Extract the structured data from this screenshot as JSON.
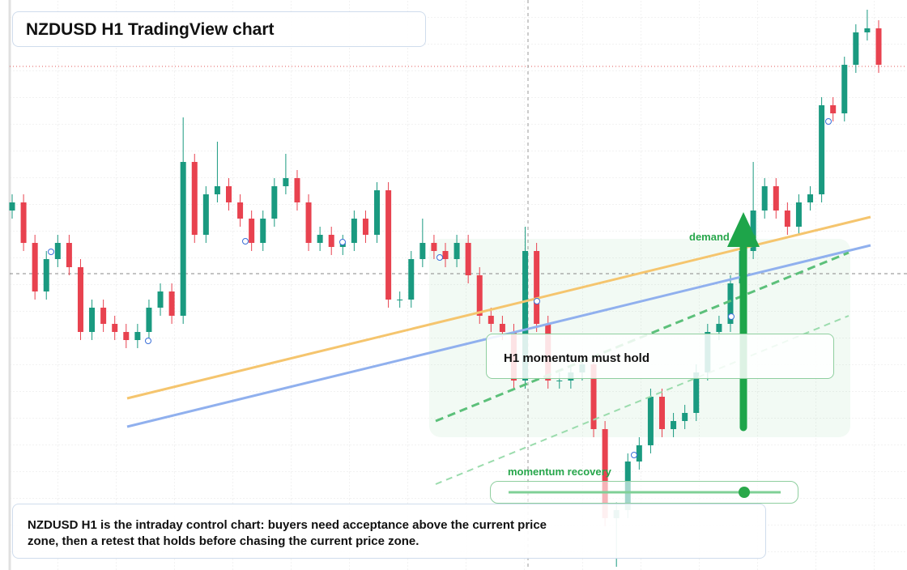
{
  "chart_data": {
    "type": "candlestick",
    "title": "NZDUSD H1 TradingView chart",
    "annotations": {
      "zone_label": "demand zone",
      "note": "H1 momentum must hold",
      "slider_label": "momentum recovery",
      "caption": "NZDUSD H1 is the intraday control chart: buyers need acceptance above the current price zone, then a retest that holds before chasing the current price zone."
    },
    "up_color": "#1a9a80",
    "down_color": "#e8424f",
    "ylim": [
      -4,
      700
    ],
    "open": [
      440,
      450,
      400,
      340,
      380,
      400,
      370,
      290,
      320,
      300,
      290,
      280,
      290,
      320,
      340,
      310,
      500,
      410,
      460,
      470,
      450,
      430,
      400,
      430,
      470,
      480,
      450,
      400,
      410,
      395,
      400,
      430,
      410,
      465,
      330,
      330,
      380,
      400,
      390,
      380,
      400,
      360,
      310,
      300,
      290,
      230,
      390,
      300,
      230,
      230,
      240,
      250,
      170,
      60,
      70,
      130,
      150,
      210,
      170,
      180,
      190,
      240,
      290,
      300,
      350,
      390,
      440,
      470,
      440,
      420,
      450,
      460,
      570,
      560,
      620,
      660,
      665
    ],
    "high": [
      460,
      460,
      410,
      390,
      410,
      410,
      380,
      330,
      330,
      310,
      300,
      300,
      330,
      350,
      350,
      555,
      510,
      470,
      525,
      480,
      460,
      440,
      440,
      480,
      510,
      490,
      460,
      420,
      420,
      410,
      440,
      440,
      475,
      475,
      340,
      390,
      430,
      410,
      400,
      410,
      410,
      370,
      320,
      310,
      300,
      420,
      400,
      310,
      240,
      250,
      260,
      260,
      180,
      80,
      140,
      160,
      220,
      220,
      190,
      200,
      250,
      300,
      310,
      360,
      400,
      500,
      480,
      480,
      450,
      460,
      470,
      580,
      580,
      630,
      670,
      688,
      675
    ],
    "low": [
      430,
      390,
      330,
      330,
      370,
      360,
      280,
      280,
      290,
      280,
      270,
      270,
      280,
      310,
      300,
      300,
      400,
      400,
      450,
      440,
      420,
      390,
      390,
      420,
      460,
      440,
      390,
      390,
      385,
      385,
      390,
      400,
      400,
      320,
      320,
      320,
      370,
      380,
      370,
      370,
      350,
      300,
      290,
      280,
      220,
      220,
      290,
      220,
      220,
      220,
      230,
      160,
      50,
      0,
      60,
      120,
      140,
      160,
      160,
      170,
      180,
      230,
      280,
      290,
      340,
      380,
      430,
      430,
      410,
      410,
      440,
      450,
      550,
      550,
      610,
      650,
      610
    ],
    "close": [
      450,
      400,
      340,
      380,
      400,
      370,
      290,
      320,
      300,
      290,
      280,
      290,
      320,
      340,
      310,
      500,
      410,
      460,
      470,
      450,
      430,
      400,
      430,
      470,
      480,
      450,
      400,
      410,
      395,
      400,
      430,
      410,
      465,
      330,
      330,
      380,
      400,
      390,
      380,
      400,
      360,
      310,
      300,
      290,
      230,
      390,
      300,
      230,
      230,
      240,
      250,
      170,
      60,
      70,
      130,
      150,
      210,
      170,
      180,
      190,
      240,
      290,
      300,
      350,
      390,
      440,
      470,
      440,
      420,
      450,
      460,
      570,
      560,
      620,
      660,
      665,
      620
    ]
  }
}
